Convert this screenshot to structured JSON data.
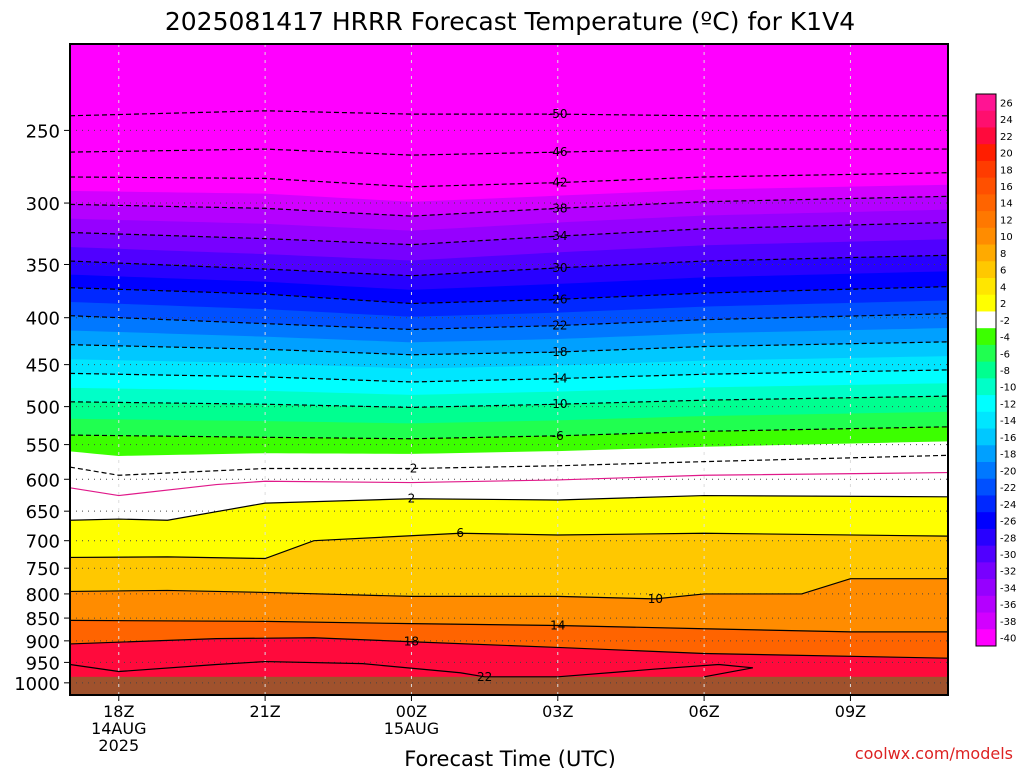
{
  "chart_data": {
    "type": "heatmap",
    "title": "2025081417 HRRR Forecast Temperature (ºC) for K1V4",
    "xlabel": "Forecast Time (UTC)",
    "ylabel": "",
    "credit": "coolwx.com/models",
    "ylim": [
      1000,
      200
    ],
    "y_scale": "log-pressure",
    "xlim": [
      -1,
      17
    ],
    "grid": "dotted",
    "legend": "right colorbar",
    "x_ticks": [
      {
        "x": 0,
        "lines": [
          "18Z",
          "14AUG",
          "2025"
        ]
      },
      {
        "x": 3,
        "lines": [
          "21Z"
        ]
      },
      {
        "x": 6,
        "lines": [
          "00Z",
          "15AUG"
        ]
      },
      {
        "x": 9,
        "lines": [
          "03Z"
        ]
      },
      {
        "x": 12,
        "lines": [
          "06Z"
        ]
      },
      {
        "x": 15,
        "lines": [
          "09Z"
        ]
      }
    ],
    "y_ticks": [
      250,
      300,
      350,
      400,
      450,
      500,
      550,
      600,
      650,
      700,
      750,
      800,
      850,
      900,
      950,
      1000
    ],
    "ground_level_hpa": 985,
    "color_levels": [
      26,
      24,
      22,
      20,
      18,
      16,
      14,
      12,
      10,
      8,
      6,
      4,
      2,
      -2,
      -4,
      -6,
      -8,
      -10,
      -12,
      -14,
      -16,
      -18,
      -20,
      -22,
      -24,
      -26,
      -28,
      -30,
      -32,
      -34,
      -36,
      -38,
      -40
    ],
    "colorbar_colors": [
      "#ff1493",
      "#ff0f6e",
      "#ff0a3c",
      "#ff1e00",
      "#ff3c00",
      "#ff5000",
      "#ff6400",
      "#ff7800",
      "#ff8c00",
      "#ffaa00",
      "#ffc800",
      "#ffe600",
      "#ffff00",
      "#ffffff",
      "#3cff00",
      "#20ff50",
      "#00ff90",
      "#00ffc8",
      "#00ffff",
      "#00e6ff",
      "#00c8ff",
      "#00a0ff",
      "#0078ff",
      "#0050ff",
      "#0028ff",
      "#0000ff",
      "#2800ff",
      "#5000ff",
      "#7800ff",
      "#9600ff",
      "#b400ff",
      "#d200ff",
      "#ff00ff"
    ],
    "ground_color": "#a0522d",
    "contours": [
      {
        "value": -50,
        "label": "-50",
        "points": [
          [
            -1,
            241
          ],
          [
            3,
            238
          ],
          [
            6,
            240
          ],
          [
            9,
            240
          ],
          [
            12,
            241
          ],
          [
            17,
            241
          ]
        ]
      },
      {
        "value": -46,
        "label": "-46",
        "points": [
          [
            -1,
            264
          ],
          [
            3,
            262
          ],
          [
            6,
            266
          ],
          [
            9,
            264
          ],
          [
            12,
            262
          ],
          [
            17,
            262
          ]
        ]
      },
      {
        "value": -42,
        "label": "-42",
        "points": [
          [
            -1,
            281
          ],
          [
            3,
            282
          ],
          [
            6,
            288
          ],
          [
            9,
            285
          ],
          [
            12,
            281
          ],
          [
            17,
            278
          ]
        ]
      },
      {
        "value": -38,
        "label": "-38",
        "points": [
          [
            -1,
            301
          ],
          [
            3,
            304
          ],
          [
            6,
            310
          ],
          [
            9,
            304
          ],
          [
            12,
            299
          ],
          [
            17,
            295
          ]
        ]
      },
      {
        "value": -34,
        "label": "-34",
        "points": [
          [
            -1,
            323
          ],
          [
            3,
            328
          ],
          [
            6,
            333
          ],
          [
            9,
            326
          ],
          [
            12,
            320
          ],
          [
            17,
            315
          ]
        ]
      },
      {
        "value": -30,
        "label": "-30",
        "points": [
          [
            -1,
            347
          ],
          [
            3,
            354
          ],
          [
            6,
            360
          ],
          [
            9,
            353
          ],
          [
            12,
            347
          ],
          [
            17,
            342
          ]
        ]
      },
      {
        "value": -26,
        "label": "-26",
        "points": [
          [
            -1,
            371
          ],
          [
            3,
            377
          ],
          [
            6,
            386
          ],
          [
            9,
            382
          ],
          [
            12,
            376
          ],
          [
            17,
            370
          ]
        ]
      },
      {
        "value": -22,
        "label": "-22",
        "points": [
          [
            -1,
            398
          ],
          [
            3,
            406
          ],
          [
            6,
            412
          ],
          [
            9,
            408
          ],
          [
            12,
            402
          ],
          [
            17,
            396
          ]
        ]
      },
      {
        "value": -18,
        "label": "-18",
        "points": [
          [
            -1,
            428
          ],
          [
            3,
            433
          ],
          [
            6,
            439
          ],
          [
            9,
            436
          ],
          [
            12,
            430
          ],
          [
            17,
            425
          ]
        ]
      },
      {
        "value": -14,
        "label": "-14",
        "points": [
          [
            -1,
            460
          ],
          [
            3,
            464
          ],
          [
            6,
            470
          ],
          [
            9,
            466
          ],
          [
            12,
            461
          ],
          [
            17,
            456
          ]
        ]
      },
      {
        "value": -10,
        "label": "-10",
        "points": [
          [
            -1,
            494
          ],
          [
            3,
            497
          ],
          [
            6,
            501
          ],
          [
            9,
            497
          ],
          [
            12,
            492
          ],
          [
            17,
            487
          ]
        ]
      },
      {
        "value": -6,
        "label": "-6",
        "points": [
          [
            -1,
            537
          ],
          [
            3,
            540
          ],
          [
            6,
            542
          ],
          [
            9,
            538
          ],
          [
            12,
            532
          ],
          [
            17,
            526
          ]
        ]
      },
      {
        "value": -2,
        "label": "-2",
        "points": [
          [
            -1,
            582
          ],
          [
            0,
            594
          ],
          [
            3,
            584
          ],
          [
            6,
            584
          ],
          [
            9,
            580
          ],
          [
            12,
            574
          ],
          [
            17,
            565
          ]
        ]
      },
      {
        "value": 0,
        "label": "",
        "points": [
          [
            -1,
            613
          ],
          [
            0,
            625
          ],
          [
            2,
            608
          ],
          [
            3,
            603
          ],
          [
            6,
            605
          ],
          [
            9,
            601
          ],
          [
            12,
            594
          ],
          [
            17,
            590
          ]
        ]
      },
      {
        "value": 2,
        "label": "2",
        "points": [
          [
            -1,
            665
          ],
          [
            0,
            663
          ],
          [
            1,
            665
          ],
          [
            3,
            637
          ],
          [
            6,
            630
          ],
          [
            9,
            632
          ],
          [
            12,
            625
          ],
          [
            17,
            627
          ]
        ]
      },
      {
        "value": 6,
        "label": "6",
        "points": [
          [
            -1,
            730
          ],
          [
            1,
            729
          ],
          [
            3,
            732
          ],
          [
            4,
            700
          ],
          [
            7,
            687
          ],
          [
            9,
            690
          ],
          [
            12,
            687
          ],
          [
            17,
            692
          ]
        ]
      },
      {
        "value": 10,
        "label": "10",
        "points": [
          [
            -1,
            795
          ],
          [
            1,
            793
          ],
          [
            3,
            797
          ],
          [
            6,
            805
          ],
          [
            9,
            805
          ],
          [
            11,
            810
          ],
          [
            12,
            800
          ],
          [
            14,
            800
          ],
          [
            15,
            770
          ],
          [
            17,
            770
          ]
        ]
      },
      {
        "value": 14,
        "label": "14",
        "points": [
          [
            -1,
            855
          ],
          [
            3,
            857
          ],
          [
            6,
            862
          ],
          [
            9,
            866
          ],
          [
            12,
            873
          ],
          [
            15,
            880
          ],
          [
            17,
            880
          ]
        ]
      },
      {
        "value": 18,
        "label": "18",
        "points": [
          [
            -1,
            907
          ],
          [
            2,
            895
          ],
          [
            4,
            893
          ],
          [
            6,
            902
          ],
          [
            9,
            915
          ],
          [
            12,
            929
          ],
          [
            17,
            940
          ]
        ]
      },
      {
        "value": 22,
        "label": "22",
        "points": [
          [
            -1,
            955
          ],
          [
            0,
            972
          ],
          [
            2,
            955
          ],
          [
            3,
            948
          ],
          [
            5,
            953
          ],
          [
            7,
            975
          ],
          [
            7.5,
            985
          ],
          [
            9,
            985
          ],
          [
            11,
            966
          ],
          [
            12.3,
            955
          ],
          [
            13,
            963
          ],
          [
            12,
            985
          ]
        ]
      }
    ]
  }
}
